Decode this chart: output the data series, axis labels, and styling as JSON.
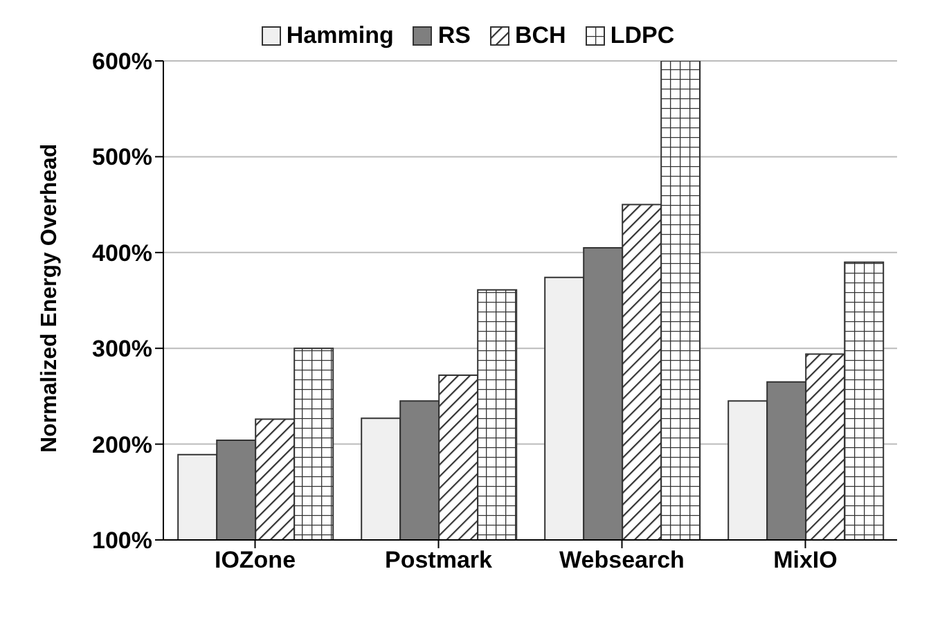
{
  "chart_data": {
    "type": "bar",
    "ylabel": "Normalized Energy Overhead",
    "categories": [
      "IOZone",
      "Postmark",
      "Websearch",
      "MixIO"
    ],
    "series": [
      {
        "name": "Hamming",
        "color": "#f0f0f0",
        "values": [
          189,
          227,
          374,
          245
        ]
      },
      {
        "name": "RS",
        "color": "#7f7f7f",
        "values": [
          204,
          245,
          405,
          265
        ]
      },
      {
        "name": "BCH",
        "color": "#333333",
        "values": [
          226,
          272,
          450,
          294
        ]
      },
      {
        "name": "LDPC",
        "color": "#333333",
        "values": [
          300,
          361,
          600,
          390
        ]
      }
    ],
    "ylim": [
      100,
      600
    ],
    "yticks": [
      {
        "value": 100,
        "label": "100%"
      },
      {
        "value": 200,
        "label": "200%"
      },
      {
        "value": 300,
        "label": "300%"
      },
      {
        "value": 400,
        "label": "400%"
      },
      {
        "value": 500,
        "label": "500%"
      },
      {
        "value": 600,
        "label": "600%"
      }
    ],
    "grid": "y",
    "legend": "top"
  }
}
